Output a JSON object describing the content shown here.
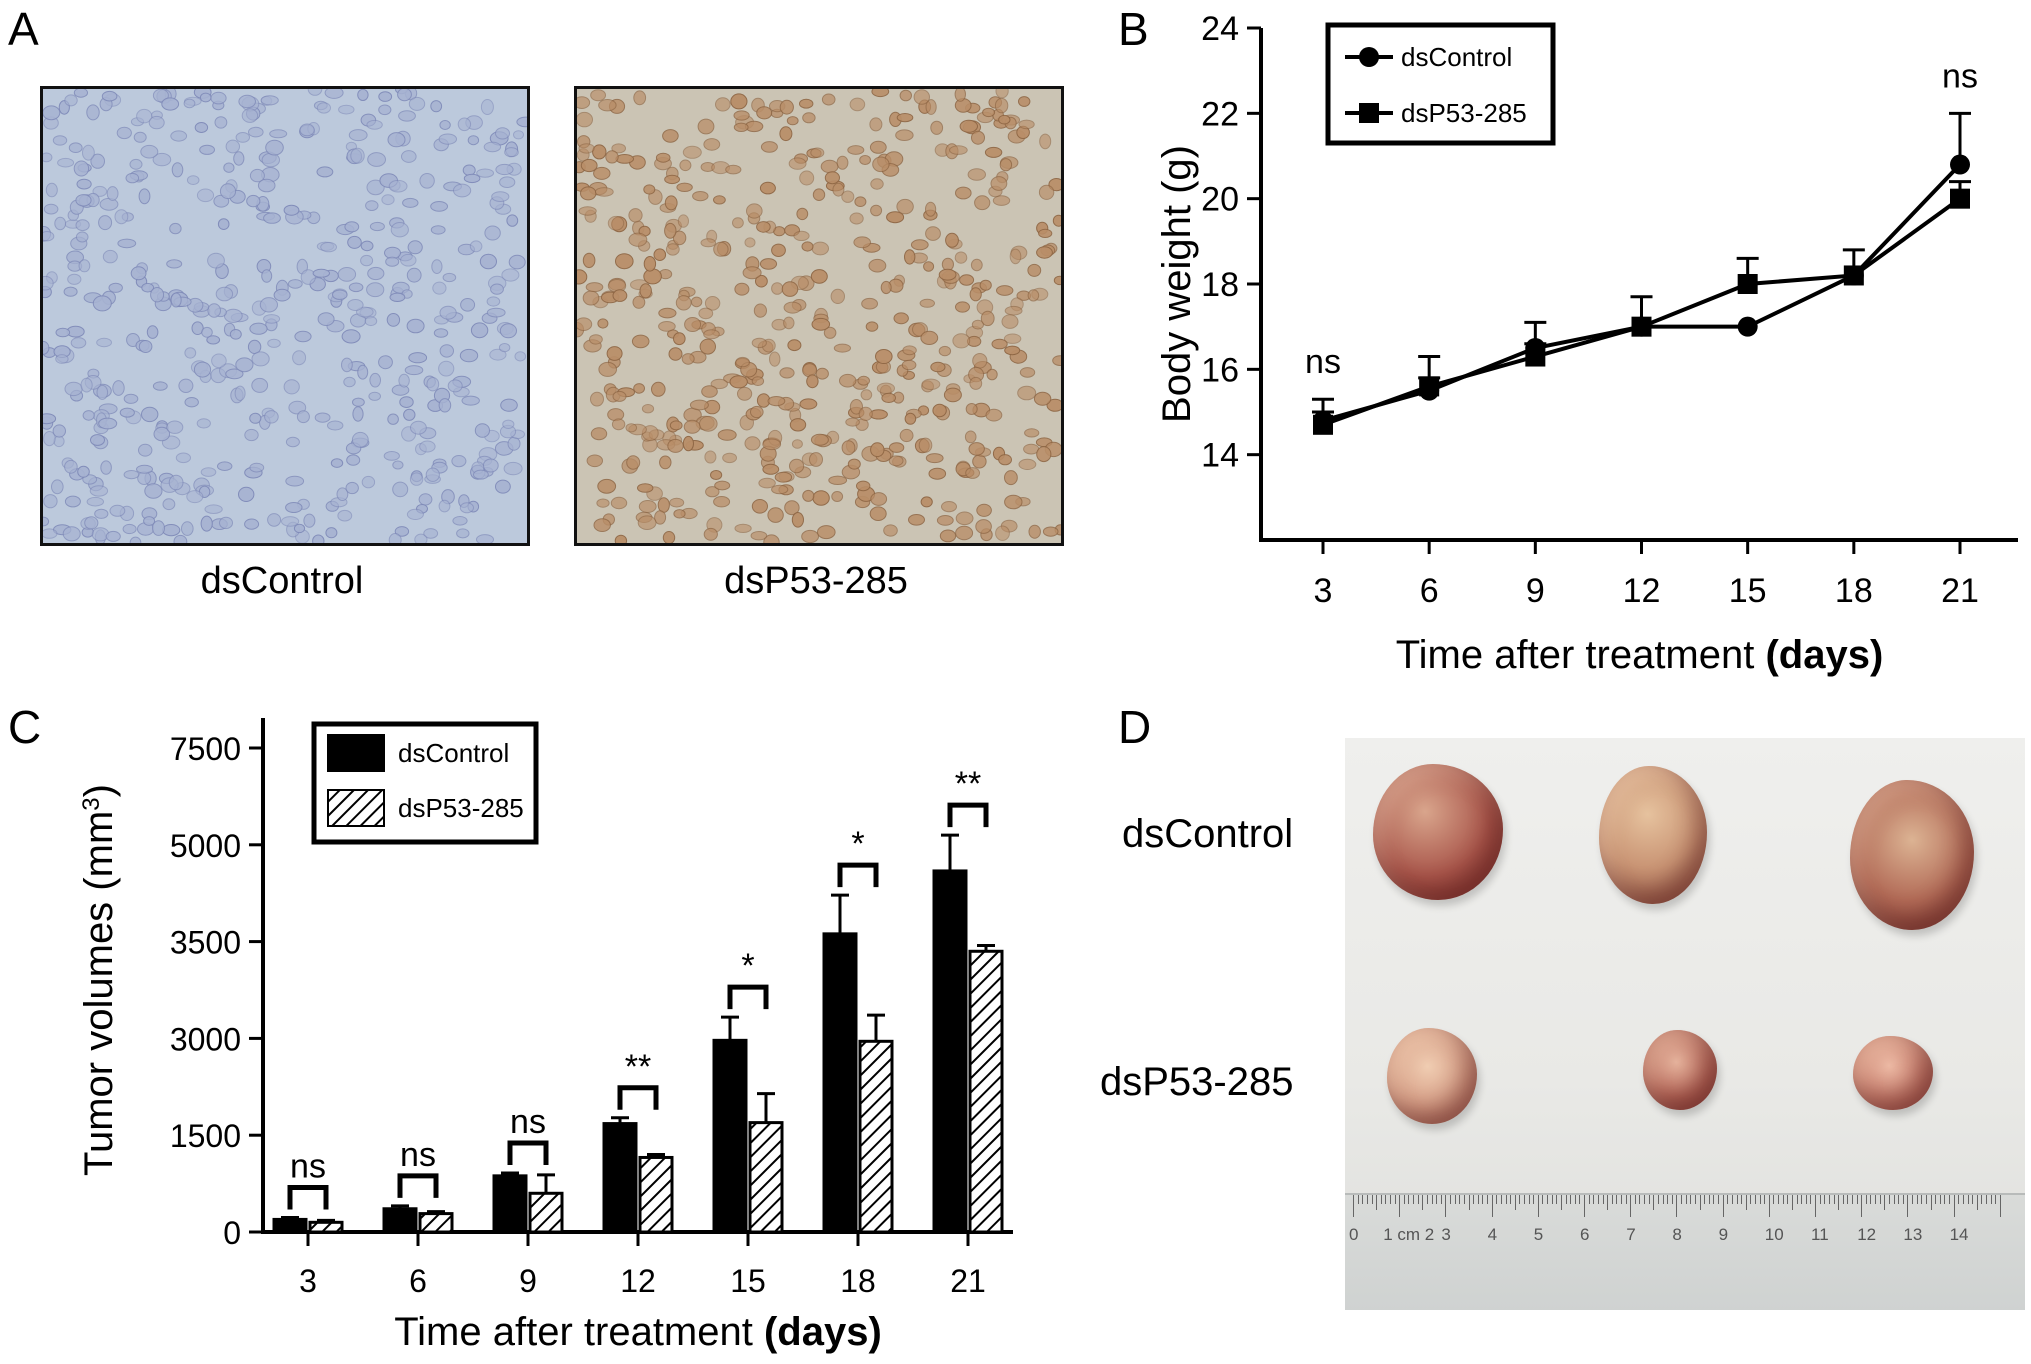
{
  "panels": {
    "A": {
      "letter": "A",
      "captions": [
        "dsControl",
        "dsP53-285"
      ]
    },
    "B": {
      "letter": "B",
      "chart_data": {
        "type": "line",
        "x": [
          3,
          6,
          9,
          12,
          15,
          18,
          21
        ],
        "xlabel": "Time after treatment",
        "xlabel_unit": "(days)",
        "ylabel": "Body weight (g)",
        "ylim": [
          12,
          24
        ],
        "yticks": [
          14,
          16,
          18,
          20,
          22,
          24
        ],
        "legend": "top-left",
        "series": [
          {
            "name": "dsControl",
            "marker": "circle",
            "values": [
              14.8,
              15.5,
              16.5,
              17.0,
              17.0,
              18.2,
              20.8
            ],
            "errors": [
              0.2,
              0.3,
              0.6,
              0.7,
              0.0,
              0.6,
              1.2
            ]
          },
          {
            "name": "dsP53-285",
            "marker": "square",
            "values": [
              14.7,
              15.6,
              16.3,
              17.0,
              18.0,
              18.2,
              20.0
            ],
            "errors": [
              0.6,
              0.7,
              0.3,
              0.0,
              0.6,
              0.0,
              0.4
            ]
          }
        ],
        "annotations": [
          {
            "x": 3,
            "text": "ns"
          },
          {
            "x": 21,
            "text": "ns"
          }
        ]
      }
    },
    "C": {
      "letter": "C",
      "chart_data": {
        "type": "bar",
        "categories": [
          "3",
          "6",
          "9",
          "12",
          "15",
          "18",
          "21"
        ],
        "xlabel": "Time after treatment",
        "xlabel_unit": "(days)",
        "ylabel": "Tumor volumes (mm",
        "ylabel_sup": "3",
        "ylabel_close": ")",
        "yticks": [
          "0",
          "1500",
          "3000",
          "3500",
          "5000",
          "7500"
        ],
        "tick_positions": [
          0,
          1,
          2,
          3,
          4,
          5
        ],
        "legend": "top-left",
        "series": [
          {
            "name": "dsControl",
            "fill": "solid",
            "values": [
              0.13,
              0.24,
              0.58,
              1.12,
              1.98,
              3.08,
              3.73
            ],
            "errors": [
              0.02,
              0.03,
              0.03,
              0.06,
              0.24,
              0.4,
              0.37
            ]
          },
          {
            "name": "dsP53-285",
            "fill": "hatched",
            "values": [
              0.1,
              0.19,
              0.4,
              0.77,
              1.13,
              1.97,
              2.9
            ],
            "errors": [
              0.02,
              0.02,
              0.19,
              0.03,
              0.3,
              0.27,
              0.06
            ]
          }
        ],
        "significance": [
          "ns",
          "ns",
          "ns",
          "**",
          "*",
          "*",
          "**"
        ]
      }
    },
    "D": {
      "letter": "D",
      "row_labels": [
        "dsControl",
        "dsP53-285"
      ],
      "ruler_numbers": [
        "0",
        "1 cm 2",
        "3",
        "4",
        "5",
        "6",
        "7",
        "8",
        "9",
        "10",
        "11",
        "12",
        "13",
        "14"
      ]
    }
  },
  "colors": {
    "ink": "#000000",
    "micro_control": "#b9c7dc",
    "micro_p53": "#c8c0ae",
    "tumor_control": "#a8554a",
    "tumor_p53": "#c87a6a"
  }
}
